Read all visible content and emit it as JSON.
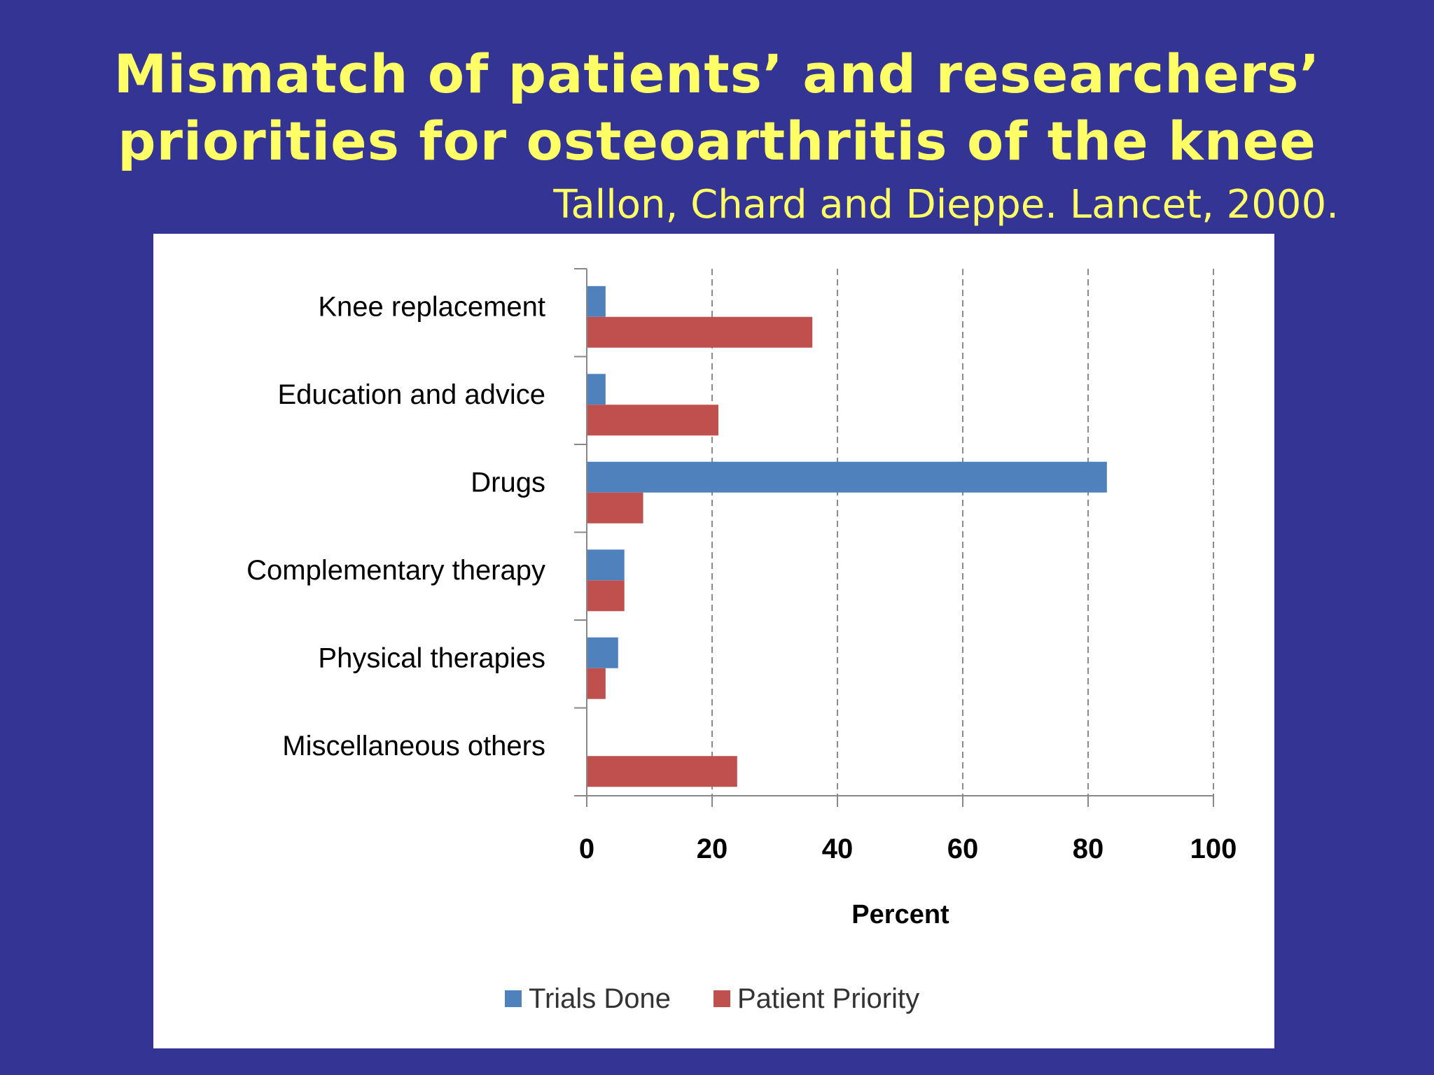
{
  "slide": {
    "title_line1": "Mismatch of patients’ and researchers’",
    "title_line2": "priorities for osteoarthritis of the knee",
    "citation": "Tallon, Chard and Dieppe. Lancet, 2000.",
    "background_color": "#343494",
    "title_color": "#ffff66"
  },
  "chart_data": {
    "type": "bar",
    "orientation": "horizontal",
    "categories": [
      "Knee replacement",
      "Education and advice",
      "Drugs",
      "Complementary therapy",
      "Physical therapies",
      "Miscellaneous others"
    ],
    "series": [
      {
        "name": "Trials Done",
        "color": "#4f81bd",
        "values": [
          3,
          3,
          83,
          6,
          5,
          0
        ]
      },
      {
        "name": "Patient Priority",
        "color": "#c0504d",
        "values": [
          36,
          21,
          9,
          6,
          3,
          24
        ]
      }
    ],
    "xlabel": "Percent",
    "ylabel": "",
    "xlim": [
      0,
      100
    ],
    "xticks": [
      0,
      20,
      40,
      60,
      80,
      100
    ],
    "grid": "vertical dashed",
    "legend": "bottom"
  }
}
